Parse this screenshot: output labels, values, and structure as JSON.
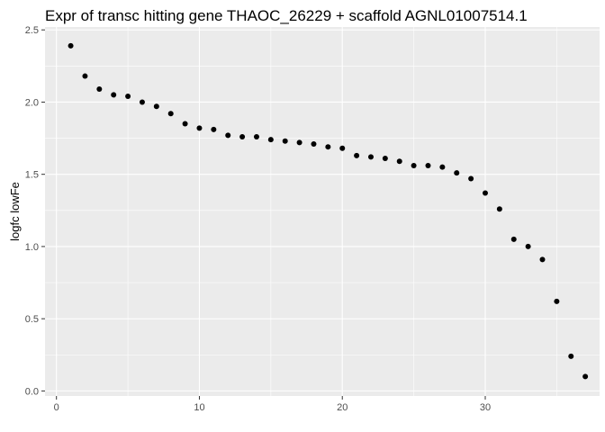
{
  "chart_data": {
    "type": "scatter",
    "title": "Expr of transc hitting gene THAOC_26229 + scaffold AGNL01007514.1",
    "xlabel": "",
    "ylabel": "logfc lowFe",
    "xlim": [
      0,
      38
    ],
    "ylim": [
      0,
      2.5
    ],
    "xticks": [
      0,
      10,
      20,
      30
    ],
    "yticks": [
      0.0,
      0.5,
      1.0,
      1.5,
      2.0,
      2.5
    ],
    "xtick_labels": [
      "0",
      "10",
      "20",
      "30"
    ],
    "ytick_labels": [
      "0.0",
      "0.5",
      "1.0",
      "1.5",
      "2.0",
      "2.5"
    ],
    "grid": true,
    "legend": "none",
    "colors": {
      "panel": "#ebebeb",
      "grid": "#ffffff",
      "point": "#000000",
      "tick": "#333333"
    },
    "points": [
      {
        "x": 1,
        "y": 2.39
      },
      {
        "x": 2,
        "y": 2.18
      },
      {
        "x": 3,
        "y": 2.09
      },
      {
        "x": 4,
        "y": 2.05
      },
      {
        "x": 5,
        "y": 2.04
      },
      {
        "x": 6,
        "y": 2.0
      },
      {
        "x": 7,
        "y": 1.97
      },
      {
        "x": 8,
        "y": 1.92
      },
      {
        "x": 9,
        "y": 1.85
      },
      {
        "x": 10,
        "y": 1.82
      },
      {
        "x": 11,
        "y": 1.81
      },
      {
        "x": 12,
        "y": 1.77
      },
      {
        "x": 13,
        "y": 1.76
      },
      {
        "x": 14,
        "y": 1.76
      },
      {
        "x": 15,
        "y": 1.74
      },
      {
        "x": 16,
        "y": 1.73
      },
      {
        "x": 17,
        "y": 1.72
      },
      {
        "x": 18,
        "y": 1.71
      },
      {
        "x": 19,
        "y": 1.69
      },
      {
        "x": 20,
        "y": 1.68
      },
      {
        "x": 21,
        "y": 1.63
      },
      {
        "x": 22,
        "y": 1.62
      },
      {
        "x": 23,
        "y": 1.61
      },
      {
        "x": 24,
        "y": 1.59
      },
      {
        "x": 25,
        "y": 1.56
      },
      {
        "x": 26,
        "y": 1.56
      },
      {
        "x": 27,
        "y": 1.55
      },
      {
        "x": 28,
        "y": 1.51
      },
      {
        "x": 29,
        "y": 1.47
      },
      {
        "x": 30,
        "y": 1.37
      },
      {
        "x": 31,
        "y": 1.26
      },
      {
        "x": 32,
        "y": 1.05
      },
      {
        "x": 33,
        "y": 1.0
      },
      {
        "x": 34,
        "y": 0.91
      },
      {
        "x": 35,
        "y": 0.62
      },
      {
        "x": 36,
        "y": 0.24
      },
      {
        "x": 37,
        "y": 0.1
      }
    ]
  }
}
